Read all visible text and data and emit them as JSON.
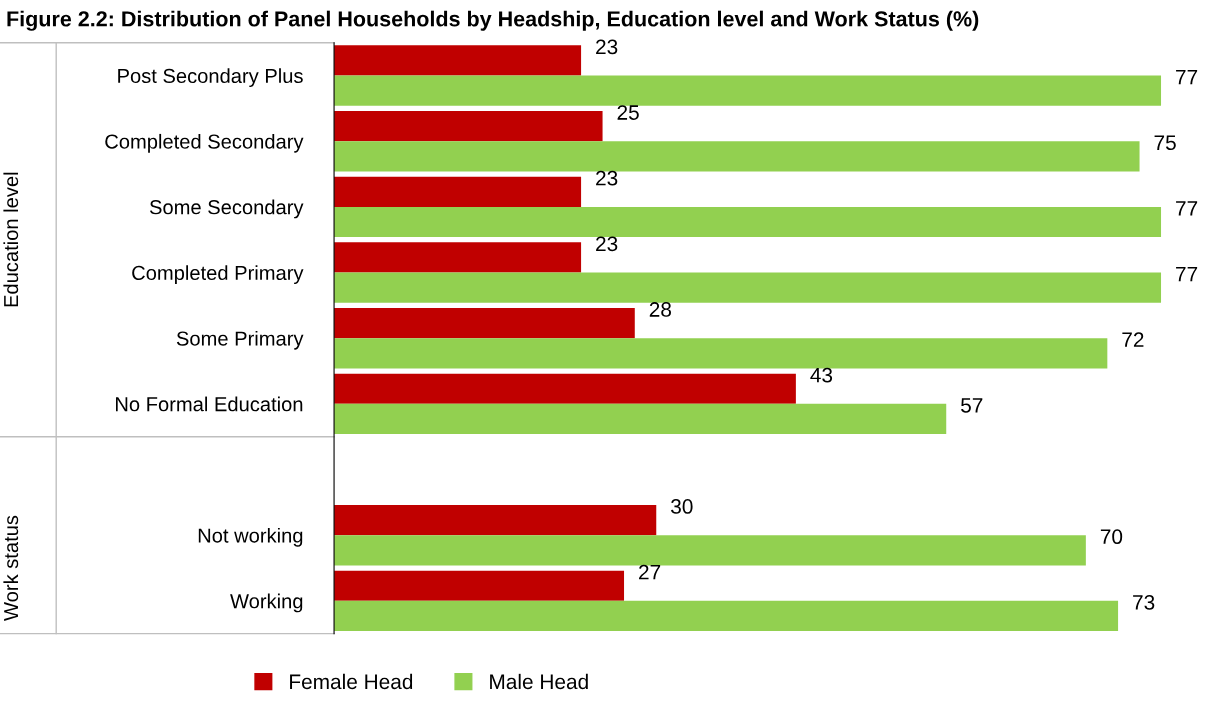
{
  "chart_data": {
    "type": "bar",
    "orientation": "horizontal",
    "title": "Figure 2.2: Distribution of Panel Households by Headship, Education level and Work Status (%)",
    "categories": [
      "Post Secondary Plus",
      "Completed Secondary",
      "Some Secondary",
      "Completed Primary",
      "Some Primary",
      "No Formal Education",
      null,
      "Not working",
      "Working"
    ],
    "series": [
      {
        "name": "Female Head",
        "color": "#c00000",
        "values": [
          23,
          25,
          23,
          23,
          28,
          43,
          null,
          30,
          27
        ]
      },
      {
        "name": "Male Head",
        "color": "#92d050",
        "values": [
          77,
          75,
          77,
          77,
          72,
          57,
          null,
          70,
          73
        ]
      }
    ],
    "annotations": [
      "Education level",
      "Work status"
    ],
    "tick_labels": "y",
    "data_labels": true,
    "legend": "bottom"
  }
}
